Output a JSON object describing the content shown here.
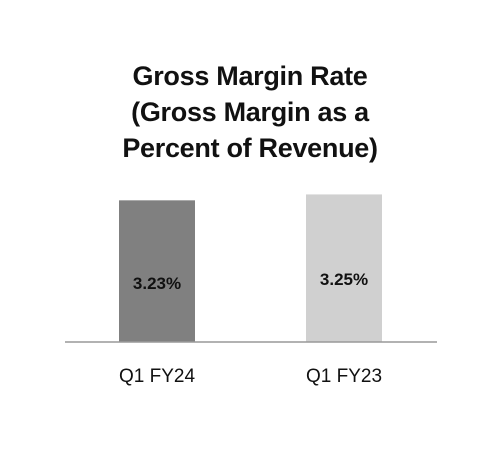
{
  "chart_data": {
    "type": "bar",
    "title_lines": [
      "Gross Margin Rate",
      "(Gross Margin as a",
      "Percent of Revenue)"
    ],
    "categories": [
      "Q1 FY24",
      "Q1 FY23"
    ],
    "values": [
      3.23,
      3.25
    ],
    "data_labels": [
      "3.23%",
      "3.25%"
    ],
    "colors": [
      "#808080",
      "#d0d0d0"
    ],
    "axis_color": "#999999",
    "ylim": [
      2.75,
      3.265
    ],
    "grid": false,
    "legend": "none"
  }
}
